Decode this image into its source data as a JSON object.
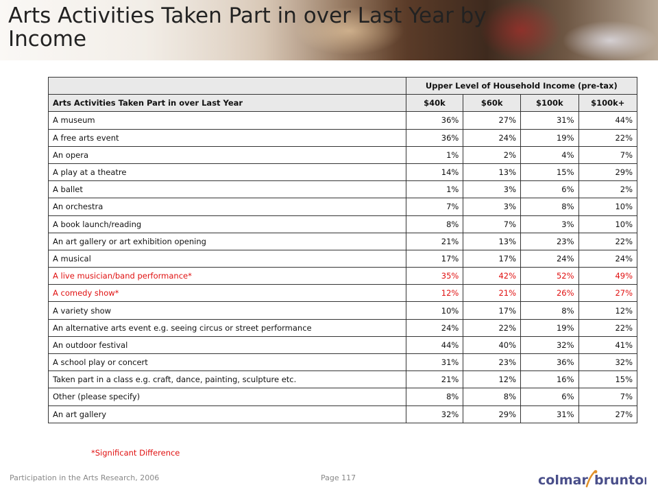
{
  "title": "Arts Activities Taken Part in over Last Year by Income",
  "table": {
    "group_header": "Upper Level of Household Income (pre-tax)",
    "row_header": "Arts Activities Taken Part in over Last Year",
    "columns": [
      "$40k",
      "$60k",
      "$100k",
      "$100k+"
    ],
    "rows": [
      {
        "label": "A museum",
        "values": [
          "36%",
          "27%",
          "31%",
          "44%"
        ],
        "significant": false
      },
      {
        "label": "A free arts event",
        "values": [
          "36%",
          "24%",
          "19%",
          "22%"
        ],
        "significant": false
      },
      {
        "label": "An opera",
        "values": [
          "1%",
          "2%",
          "4%",
          "7%"
        ],
        "significant": false
      },
      {
        "label": "A play at a theatre",
        "values": [
          "14%",
          "13%",
          "15%",
          "29%"
        ],
        "significant": false
      },
      {
        "label": "A ballet",
        "values": [
          "1%",
          "3%",
          "6%",
          "2%"
        ],
        "significant": false
      },
      {
        "label": "An orchestra",
        "values": [
          "7%",
          "3%",
          "8%",
          "10%"
        ],
        "significant": false
      },
      {
        "label": "A book launch/reading",
        "values": [
          "8%",
          "7%",
          "3%",
          "10%"
        ],
        "significant": false
      },
      {
        "label": "An art gallery or art exhibition opening",
        "values": [
          "21%",
          "13%",
          "23%",
          "22%"
        ],
        "significant": false
      },
      {
        "label": "A musical",
        "values": [
          "17%",
          "17%",
          "24%",
          "24%"
        ],
        "significant": false
      },
      {
        "label": "A live musician/band performance*",
        "values": [
          "35%",
          "42%",
          "52%",
          "49%"
        ],
        "significant": true
      },
      {
        "label": "A comedy show*",
        "values": [
          "12%",
          "21%",
          "26%",
          "27%"
        ],
        "significant": true
      },
      {
        "label": "A variety show",
        "values": [
          "10%",
          "17%",
          "8%",
          "12%"
        ],
        "significant": false
      },
      {
        "label": "An alternative arts event e.g. seeing circus or street performance",
        "values": [
          "24%",
          "22%",
          "19%",
          "22%"
        ],
        "significant": false
      },
      {
        "label": "An outdoor festival",
        "values": [
          "44%",
          "40%",
          "32%",
          "41%"
        ],
        "significant": false
      },
      {
        "label": "A school play or concert",
        "values": [
          "31%",
          "23%",
          "36%",
          "32%"
        ],
        "significant": false
      },
      {
        "label": "Taken part in a class e.g. craft, dance, painting, sculpture etc.",
        "values": [
          "21%",
          "12%",
          "16%",
          "15%"
        ],
        "significant": false
      },
      {
        "label": "Other (please specify)",
        "values": [
          "8%",
          "8%",
          "6%",
          "7%"
        ],
        "significant": false
      },
      {
        "label": "An art gallery",
        "values": [
          "32%",
          "29%",
          "31%",
          "27%"
        ],
        "significant": false
      }
    ]
  },
  "footnote": "*Significant Difference",
  "footer": {
    "source": "Participation in the Arts Research, 2006",
    "page": "Page 117",
    "logo_text": "colmar brunton"
  },
  "colors": {
    "significant": "#e01010",
    "logo": "#4a4f8a",
    "logo_accent": "#e0902a"
  }
}
